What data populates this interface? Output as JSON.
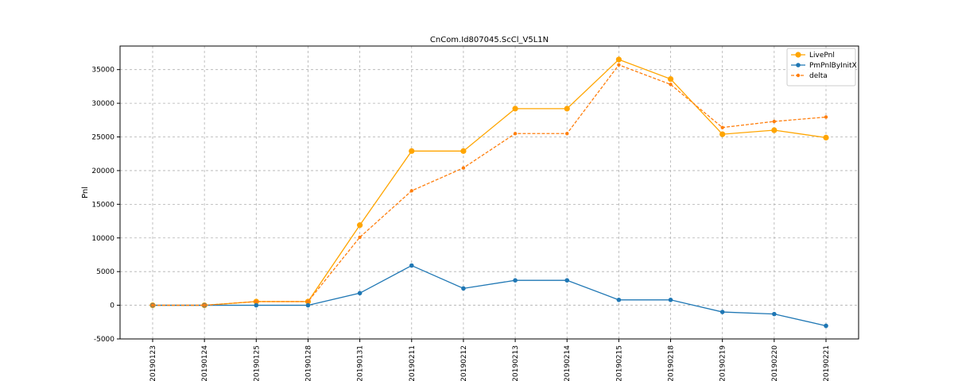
{
  "chart_data": {
    "type": "line",
    "title": "CnCom.Id807045.ScCl_V5L1N",
    "xlabel": "",
    "ylabel": "Pnl",
    "categories": [
      "20190123",
      "20190124",
      "20190125",
      "20190128",
      "20190131",
      "20190211",
      "20190212",
      "20190213",
      "20190214",
      "20190215",
      "20190218",
      "20190219",
      "20190220",
      "20190221"
    ],
    "ylim": [
      -5000,
      38500
    ],
    "yticks": [
      -5000,
      0,
      5000,
      10000,
      15000,
      20000,
      25000,
      30000,
      35000
    ],
    "grid": true,
    "legend_position": "top-right",
    "series": [
      {
        "name": "LivePnl",
        "color": "#ffa500",
        "style": "solid",
        "marker_size": 3.6,
        "values": [
          0,
          0,
          550,
          550,
          11900,
          22900,
          22900,
          29200,
          29200,
          36500,
          33600,
          25400,
          26000,
          24900
        ]
      },
      {
        "name": "PmPnlByInitX",
        "color": "#1f77b4",
        "style": "solid",
        "marker_size": 2.8,
        "values": [
          0,
          0,
          0,
          0,
          1800,
          5900,
          2500,
          3700,
          3700,
          800,
          800,
          -1000,
          -1300,
          -3050
        ]
      },
      {
        "name": "delta",
        "color": "#ff7f0e",
        "style": "dashed",
        "marker_size": 2.2,
        "values": [
          0,
          0,
          550,
          550,
          10100,
          17000,
          20400,
          25500,
          25500,
          35700,
          32800,
          26400,
          27300,
          27950
        ]
      }
    ]
  }
}
